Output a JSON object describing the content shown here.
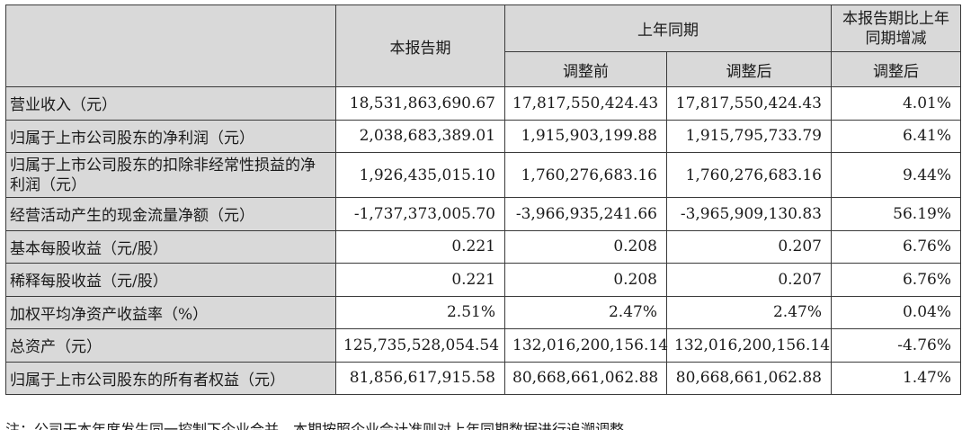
{
  "header": {
    "current_period": "本报告期",
    "prior_year_period": "上年同期",
    "change_top": "本报告期比上年同期增减",
    "before_adjustment": "调整前",
    "after_adjustment": "调整后",
    "change_sub": "调整后"
  },
  "rows": [
    {
      "label": "营业收入（元）",
      "current": "18,531,863,690.67",
      "before": "17,817,550,424.43",
      "after": "17,817,550,424.43",
      "change": "4.01%"
    },
    {
      "label": "归属于上市公司股东的净利润（元）",
      "current": "2,038,683,389.01",
      "before": "1,915,903,199.88",
      "after": "1,915,795,733.79",
      "change": "6.41%"
    },
    {
      "label": "归属于上市公司股东的扣除非经常性损益的净利润（元）",
      "current": "1,926,435,015.10",
      "before": "1,760,276,683.16",
      "after": "1,760,276,683.16",
      "change": "9.44%"
    },
    {
      "label": "经营活动产生的现金流量净额（元）",
      "current": "-1,737,373,005.70",
      "before": "-3,966,935,241.66",
      "after": "-3,965,909,130.83",
      "change": "56.19%"
    },
    {
      "label": "基本每股收益（元/股）",
      "current": "0.221",
      "before": "0.208",
      "after": "0.207",
      "change": "6.76%"
    },
    {
      "label": "稀释每股收益（元/股）",
      "current": "0.221",
      "before": "0.208",
      "after": "0.207",
      "change": "6.76%"
    },
    {
      "label": "加权平均净资产收益率（%）",
      "current": "2.51%",
      "before": "2.47%",
      "after": "2.47%",
      "change": "0.04%"
    },
    {
      "label": "总资产（元）",
      "current": "125,735,528,054.54",
      "before": "132,016,200,156.14",
      "after": "132,016,200,156.14",
      "change": "-4.76%"
    },
    {
      "label": "归属于上市公司股东的所有者权益（元）",
      "current": "81,856,617,915.58",
      "before": "80,668,661,062.88",
      "after": "80,668,661,062.88",
      "change": "1.47%"
    }
  ],
  "footnote": "注：公司于本年度发生同一控制下企业合并，本期按照企业会计准则对上年同期数据进行追溯调整。"
}
